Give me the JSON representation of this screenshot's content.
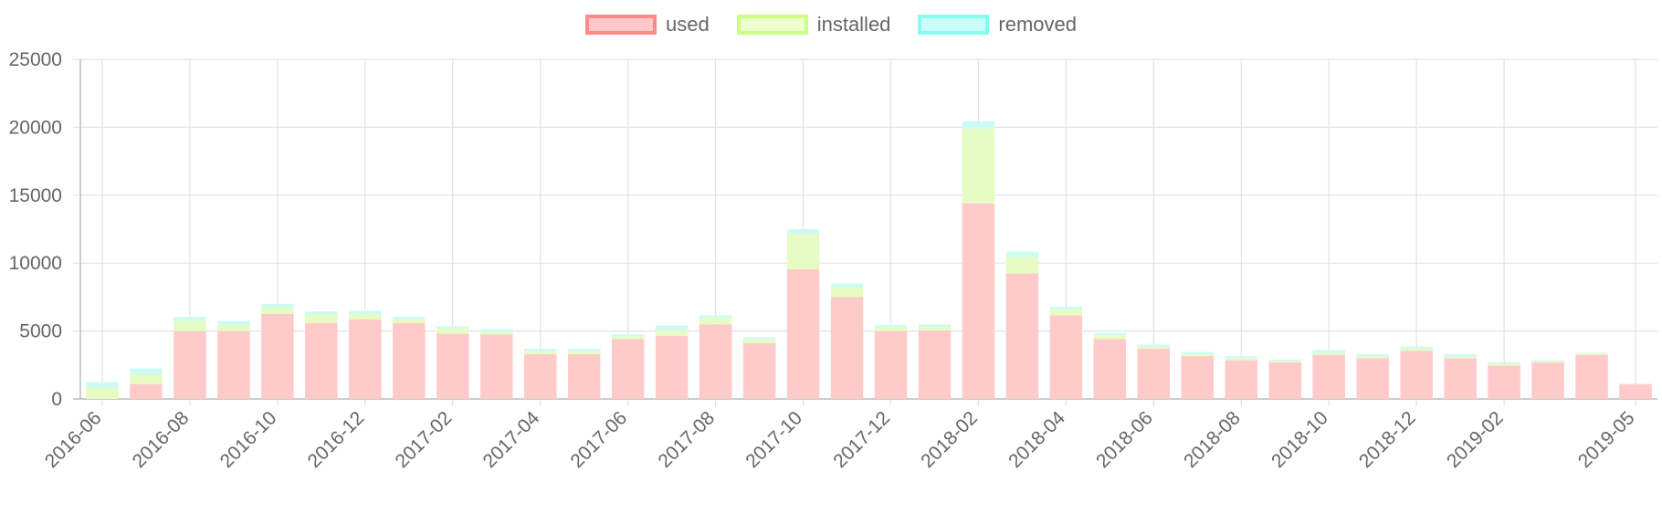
{
  "legend": {
    "items": [
      {
        "label": "used",
        "fill": "rgba(255,99,99,0.35)",
        "stroke": "#ff8a8a"
      },
      {
        "label": "installed",
        "fill": "rgba(204,255,102,0.35)",
        "stroke": "#ccff88"
      },
      {
        "label": "removed",
        "fill": "rgba(102,255,238,0.35)",
        "stroke": "#88ffee"
      }
    ]
  },
  "chart_data": {
    "type": "bar",
    "stacked": true,
    "x_tick_labels": [
      "2016-06",
      "2016-08",
      "2016-10",
      "2016-12",
      "2017-02",
      "2017-04",
      "2017-06",
      "2017-08",
      "2017-10",
      "2017-12",
      "2018-02",
      "2018-04",
      "2018-06",
      "2018-08",
      "2018-10",
      "2018-12",
      "2019-02",
      "2019-05"
    ],
    "ylim": [
      0,
      25000
    ],
    "y_ticks": [
      0,
      5000,
      10000,
      15000,
      20000,
      25000
    ],
    "grid": true,
    "legend_position": "top",
    "categories": [
      "2016-06",
      "2016-07",
      "2016-08",
      "2016-09",
      "2016-10",
      "2016-11",
      "2016-12",
      "2017-01",
      "2017-02",
      "2017-03",
      "2017-04",
      "2017-05",
      "2017-06",
      "2017-07",
      "2017-08",
      "2017-09",
      "2017-10",
      "2017-11",
      "2017-12",
      "2018-01",
      "2018-02",
      "2018-03",
      "2018-04",
      "2018-05",
      "2018-06",
      "2018-07",
      "2018-08",
      "2018-09",
      "2018-10",
      "2018-11",
      "2018-12",
      "2019-01",
      "2019-02",
      "2019-03",
      "2019-04",
      "2019-05"
    ],
    "series": [
      {
        "name": "used",
        "color": "#ffcaca",
        "values": [
          0,
          1100,
          5000,
          5000,
          6250,
          5600,
          5850,
          5600,
          4800,
          4750,
          3300,
          3300,
          4400,
          4650,
          5500,
          4100,
          9550,
          7500,
          5000,
          5050,
          14400,
          9250,
          6150,
          4400,
          3700,
          3150,
          2850,
          2700,
          3250,
          3000,
          3550,
          3000,
          2450,
          2700,
          3250,
          1100
        ]
      },
      {
        "name": "installed",
        "color": "#e7fcc4",
        "values": [
          800,
          700,
          750,
          450,
          500,
          600,
          400,
          300,
          400,
          200,
          250,
          250,
          200,
          400,
          500,
          300,
          2600,
          700,
          300,
          250,
          5500,
          1200,
          450,
          300,
          150,
          150,
          150,
          100,
          150,
          150,
          150,
          100,
          150,
          100,
          100,
          0
        ]
      },
      {
        "name": "removed",
        "color": "#cdfbf4",
        "values": [
          450,
          450,
          300,
          300,
          250,
          250,
          250,
          150,
          150,
          200,
          150,
          150,
          150,
          350,
          150,
          150,
          350,
          300,
          150,
          200,
          550,
          400,
          200,
          150,
          150,
          150,
          150,
          100,
          200,
          150,
          150,
          200,
          100,
          50,
          50,
          0
        ]
      }
    ]
  }
}
